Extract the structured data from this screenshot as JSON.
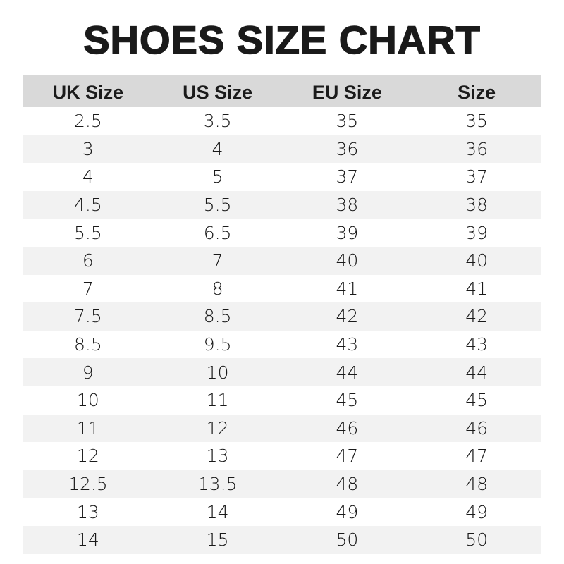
{
  "title": "SHOES SIZE CHART",
  "colors": {
    "header_bg": "#d9d9d9",
    "band_bg": "#f2f2f2",
    "text": "#1a1a1a"
  },
  "chart_data": {
    "type": "table",
    "title": "SHOES SIZE CHART",
    "columns": [
      "UK Size",
      "US Size",
      "EU Size",
      "Size"
    ],
    "rows": [
      [
        "2.5",
        "3.5",
        "35",
        "35"
      ],
      [
        "3",
        "4",
        "36",
        "36"
      ],
      [
        "4",
        "5",
        "37",
        "37"
      ],
      [
        "4.5",
        "5.5",
        "38",
        "38"
      ],
      [
        "5.5",
        "6.5",
        "39",
        "39"
      ],
      [
        "6",
        "7",
        "40",
        "40"
      ],
      [
        "7",
        "8",
        "41",
        "41"
      ],
      [
        "7.5",
        "8.5",
        "42",
        "42"
      ],
      [
        "8.5",
        "9.5",
        "43",
        "43"
      ],
      [
        "9",
        "10",
        "44",
        "44"
      ],
      [
        "10",
        "11",
        "45",
        "45"
      ],
      [
        "11",
        "12",
        "46",
        "46"
      ],
      [
        "12",
        "13",
        "47",
        "47"
      ],
      [
        "12.5",
        "13.5",
        "48",
        "48"
      ],
      [
        "13",
        "14",
        "49",
        "49"
      ],
      [
        "14",
        "15",
        "50",
        "50"
      ]
    ]
  }
}
